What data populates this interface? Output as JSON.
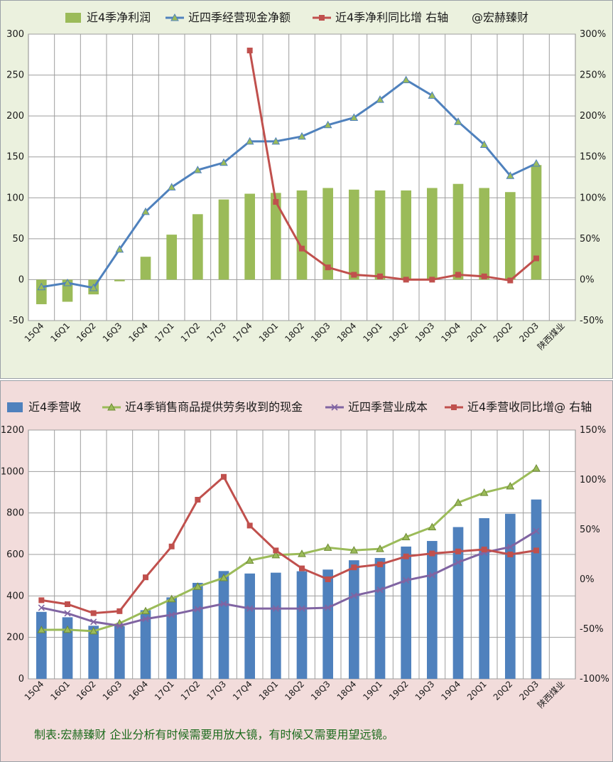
{
  "charts": [
    {
      "legend": [
        {
          "label": "近4季净利润",
          "kind": "bar",
          "color": "#9bbb59"
        },
        {
          "label": "近四季经营现金净额",
          "kind": "line-triangle",
          "color": "#4f81bd"
        },
        {
          "label": "近4季净利同比增 右轴",
          "kind": "line-square",
          "color": "#c0504d"
        },
        {
          "label": "@宏赫臻财",
          "kind": "text"
        }
      ],
      "yticks": [
        "300",
        "250",
        "200",
        "150",
        "100",
        "50",
        "0",
        "-50"
      ],
      "y2ticks": [
        "300%",
        "250%",
        "200%",
        "150%",
        "100%",
        "50%",
        "0%",
        "-50%"
      ],
      "company_label": "陕西煤业"
    },
    {
      "legend": [
        {
          "label": "近4季营收",
          "kind": "bar",
          "color": "#4f81bd"
        },
        {
          "label": "近4季销售商品提供劳务收到的现金",
          "kind": "line-triangle",
          "color": "#9bbb59"
        },
        {
          "label": "近四季营业成本",
          "kind": "line-x",
          "color": "#8064a2"
        },
        {
          "label": "近4季营收同比增@ 右轴",
          "kind": "line-square",
          "color": "#c0504d"
        }
      ],
      "yticks": [
        "1200",
        "1000",
        "800",
        "600",
        "400",
        "200",
        "0"
      ],
      "y2ticks": [
        "150%",
        "100%",
        "50%",
        "0%",
        "-50%",
        "-100%"
      ],
      "company_label": "陕西煤业",
      "footer": "制表:宏赫臻财    企业分析有时候需要用放大镜，有时候又需要用望远镜。"
    }
  ],
  "chart_data": [
    {
      "type": "bar",
      "categories": [
        "15Q4",
        "16Q1",
        "16Q2",
        "16Q3",
        "16Q4",
        "17Q1",
        "17Q2",
        "17Q3",
        "17Q4",
        "18Q1",
        "18Q2",
        "18Q3",
        "18Q4",
        "19Q1",
        "19Q2",
        "19Q3",
        "19Q4",
        "20Q1",
        "20Q2",
        "20Q3"
      ],
      "ylim": [
        -50,
        300
      ],
      "y2lim": [
        -50,
        300
      ],
      "grid": true,
      "legend_position": "top",
      "series": [
        {
          "name": "近4季净利润",
          "type": "bar",
          "axis": "left",
          "color": "#9bbb59",
          "values": [
            -30,
            -27,
            -18,
            -2,
            28,
            55,
            80,
            98,
            105,
            106,
            109,
            112,
            110,
            109,
            109,
            112,
            117,
            112,
            107,
            140
          ]
        },
        {
          "name": "近四季经营现金净额",
          "type": "line",
          "marker": "triangle",
          "axis": "left",
          "color": "#4f81bd",
          "values": [
            -9,
            -4,
            -10,
            37,
            83,
            113,
            134,
            143,
            169,
            169,
            175,
            189,
            198,
            220,
            244,
            225,
            193,
            165,
            127,
            142
          ]
        },
        {
          "name": "近4季净利同比增 右轴",
          "type": "line",
          "marker": "square",
          "axis": "right",
          "unit": "%",
          "color": "#c0504d",
          "values": [
            null,
            null,
            null,
            null,
            null,
            null,
            null,
            null,
            280,
            95,
            38,
            15,
            6,
            4,
            0,
            0,
            6,
            4,
            -1,
            26
          ]
        }
      ]
    },
    {
      "type": "bar",
      "categories": [
        "15Q4",
        "16Q1",
        "16Q2",
        "16Q3",
        "16Q4",
        "17Q1",
        "17Q2",
        "17Q3",
        "17Q4",
        "18Q1",
        "18Q2",
        "18Q3",
        "18Q4",
        "19Q1",
        "19Q2",
        "19Q3",
        "19Q4",
        "20Q1",
        "20Q2",
        "20Q3"
      ],
      "ylim": [
        0,
        1200
      ],
      "y2lim": [
        -100,
        150
      ],
      "grid": true,
      "legend_position": "top",
      "series": [
        {
          "name": "近4季营收",
          "type": "bar",
          "axis": "left",
          "color": "#4f81bd",
          "values": [
            323,
            297,
            256,
            254,
            331,
            393,
            463,
            520,
            508,
            512,
            519,
            527,
            572,
            583,
            638,
            665,
            732,
            775,
            796,
            865
          ]
        },
        {
          "name": "近4季销售商品提供劳务收到的现金",
          "type": "line",
          "marker": "triangle",
          "axis": "left",
          "color": "#9bbb59",
          "values": [
            236,
            237,
            230,
            268,
            327,
            385,
            445,
            487,
            571,
            597,
            603,
            633,
            620,
            627,
            684,
            732,
            850,
            898,
            929,
            1015
          ]
        },
        {
          "name": "近四季营业成本",
          "type": "line",
          "marker": "x",
          "axis": "left",
          "color": "#8064a2",
          "values": [
            343,
            316,
            275,
            256,
            289,
            309,
            336,
            362,
            339,
            339,
            339,
            343,
            401,
            429,
            475,
            501,
            562,
            609,
            636,
            713
          ]
        },
        {
          "name": "近4季营收同比增@ 右轴",
          "type": "line",
          "marker": "square",
          "axis": "right",
          "unit": "%",
          "color": "#c0504d",
          "values": [
            -21,
            -25,
            -34,
            -32,
            2,
            33,
            80,
            103,
            54,
            29,
            11,
            0,
            12,
            15,
            23,
            26,
            28,
            30,
            25,
            29
          ]
        }
      ]
    }
  ]
}
